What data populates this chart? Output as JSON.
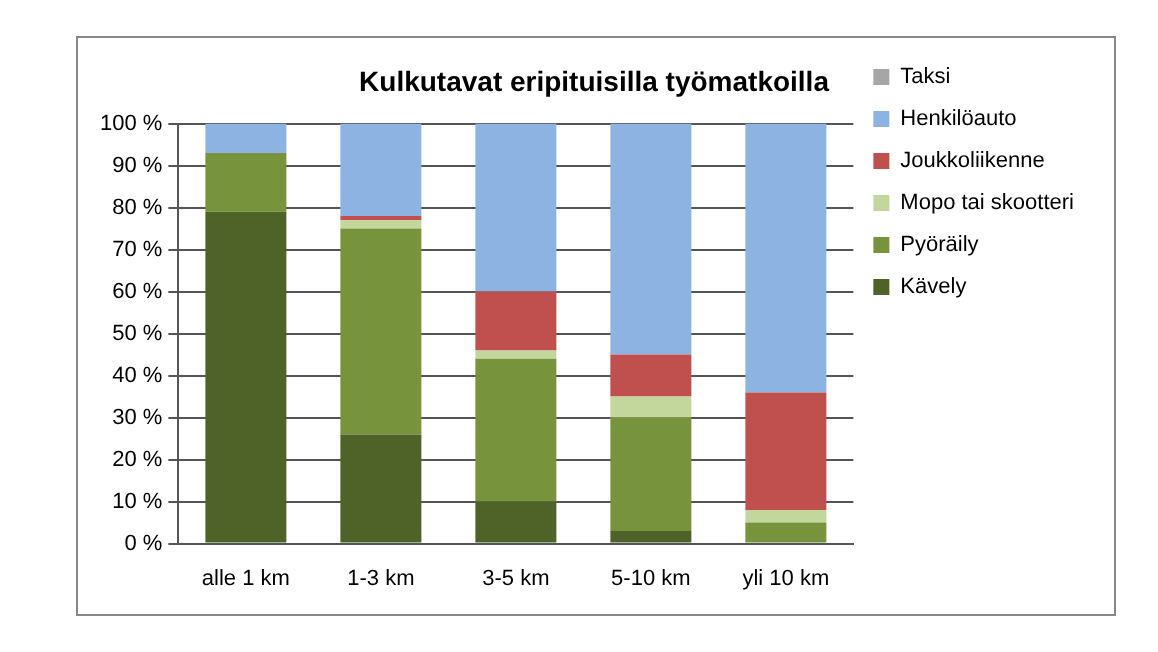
{
  "chart_data": {
    "type": "bar",
    "stacked": true,
    "title": "Kulkutavat eripituisilla työmatkoilla",
    "categories": [
      "alle 1 km",
      "1-3 km",
      "3-5 km",
      "5-10 km",
      "yli 10 km"
    ],
    "series": [
      {
        "name": "Kävely",
        "color": "#4f6228",
        "values": [
          79,
          26,
          10,
          3,
          0
        ]
      },
      {
        "name": "Pyöräily",
        "color": "#77933c",
        "values": [
          14,
          49,
          34,
          27,
          5
        ]
      },
      {
        "name": "Mopo tai skootteri",
        "color": "#c3d69b",
        "values": [
          0,
          2,
          2,
          5,
          3
        ]
      },
      {
        "name": "Joukkoliikenne",
        "color": "#c0504d",
        "values": [
          0,
          1,
          14,
          10,
          28
        ]
      },
      {
        "name": "Henkilöauto",
        "color": "#8db3e2",
        "values": [
          7,
          22,
          40,
          55,
          64
        ]
      },
      {
        "name": "Taksi",
        "color": "#a6a6a6",
        "values": [
          0,
          0,
          0,
          0,
          0
        ]
      }
    ],
    "ylim": [
      0,
      100
    ],
    "yticks": [
      {
        "value": 0,
        "label": "0 %"
      },
      {
        "value": 10,
        "label": "10 %"
      },
      {
        "value": 20,
        "label": "20 %"
      },
      {
        "value": 30,
        "label": "30 %"
      },
      {
        "value": 40,
        "label": "40 %"
      },
      {
        "value": 50,
        "label": "50 %"
      },
      {
        "value": 60,
        "label": "60 %"
      },
      {
        "value": 70,
        "label": "70 %"
      },
      {
        "value": 80,
        "label": "80 %"
      },
      {
        "value": 90,
        "label": "90 %"
      },
      {
        "value": 100,
        "label": "100 %"
      }
    ],
    "grid": "y",
    "legend": "right"
  }
}
